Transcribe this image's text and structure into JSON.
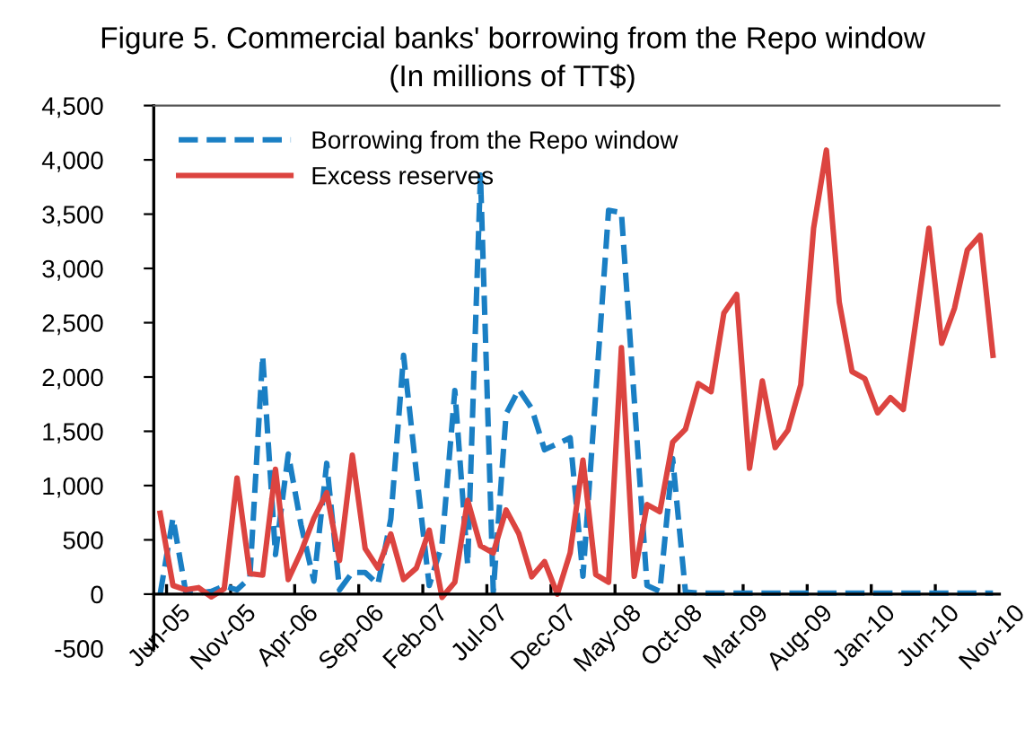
{
  "chart_data": {
    "type": "line",
    "title": "Figure 5. Commercial banks' borrowing from the Repo window",
    "subtitle": "(In millions of TT$)",
    "categories": [
      "Jun-05",
      null,
      null,
      null,
      null,
      "Nov-05",
      null,
      null,
      null,
      null,
      "Apr-06",
      null,
      null,
      null,
      null,
      "Sep-06",
      null,
      null,
      null,
      null,
      "Feb-07",
      null,
      null,
      null,
      null,
      "Jul-07",
      null,
      null,
      null,
      null,
      "Dec-07",
      null,
      null,
      null,
      null,
      "May-08",
      null,
      null,
      null,
      null,
      "Oct-08",
      null,
      null,
      null,
      null,
      "Mar-09",
      null,
      null,
      null,
      null,
      "Aug-09",
      null,
      null,
      null,
      null,
      "Jan-10",
      null,
      null,
      null,
      null,
      "Jun-10",
      null,
      null,
      null,
      null,
      "Nov-10"
    ],
    "series": [
      {
        "name": "Borrowing from the Repo window",
        "color": "#1a7fc4",
        "line_style": "dashed",
        "values": [
          0,
          700,
          20,
          10,
          25,
          75,
          40,
          150,
          2195,
          365,
          1290,
          635,
          120,
          1205,
          40,
          200,
          200,
          90,
          690,
          2200,
          1115,
          80,
          460,
          1875,
          270,
          3860,
          25,
          1660,
          1885,
          1710,
          1330,
          1385,
          1440,
          165,
          1850,
          3535,
          3515,
          1800,
          80,
          25,
          1250,
          20,
          10,
          10,
          10,
          10,
          10,
          10,
          10,
          10,
          10,
          10,
          10,
          10,
          10,
          10,
          10,
          10,
          10,
          10,
          10,
          10,
          10,
          10,
          10,
          10
        ]
      },
      {
        "name": "Excess reserves",
        "color": "#dc4440",
        "line_style": "solid",
        "values": [
          745,
          80,
          40,
          60,
          -25,
          50,
          1070,
          190,
          175,
          1150,
          135,
          390,
          700,
          935,
          310,
          1280,
          420,
          240,
          555,
          135,
          240,
          590,
          -30,
          110,
          865,
          445,
          380,
          775,
          555,
          160,
          300,
          0,
          380,
          1235,
          180,
          110,
          2270,
          165,
          825,
          760,
          1400,
          1520,
          1940,
          1865,
          2590,
          2760,
          1160,
          1965,
          1350,
          1510,
          1930,
          3370,
          4090,
          2690,
          2050,
          1985,
          1670,
          1810,
          1700,
          2525,
          3370,
          2310,
          2635,
          3170,
          3305,
          2200
        ]
      }
    ],
    "ylim": [
      -500,
      4500
    ],
    "yticks": [
      {
        "value": -500,
        "label": "-500"
      },
      {
        "value": 0,
        "label": "0"
      },
      {
        "value": 500,
        "label": "500"
      },
      {
        "value": 1000,
        "label": "1,000"
      },
      {
        "value": 1500,
        "label": "1,500"
      },
      {
        "value": 2000,
        "label": "2,000"
      },
      {
        "value": 2500,
        "label": "2,500"
      },
      {
        "value": 3000,
        "label": "3,000"
      },
      {
        "value": 3500,
        "label": "3,500"
      },
      {
        "value": 4000,
        "label": "4,000"
      },
      {
        "value": 4500,
        "label": "4,500"
      }
    ],
    "grid": false,
    "legend": "top left",
    "marker": "none"
  }
}
